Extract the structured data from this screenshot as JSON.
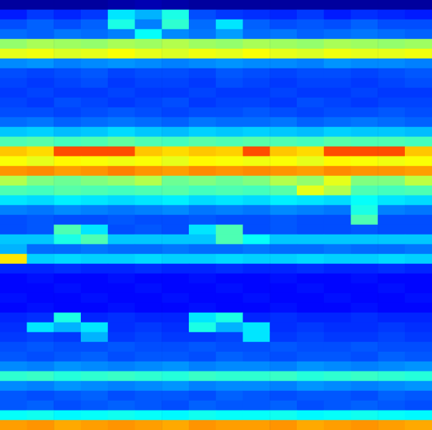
{
  "chart_data": {
    "type": "heatmap",
    "tick_labels": false,
    "zlim": [
      0,
      10
    ],
    "colormap": [
      "#00007f",
      "#0000ff",
      "#0080ff",
      "#00ffff",
      "#80ff80",
      "#ffff00",
      "#ff8000",
      "#ff0000",
      "#7f0000"
    ],
    "cells": [
      [
        0.3,
        0.3,
        0.3,
        0.3,
        0.4,
        0.5,
        0.4,
        0.3,
        0.3,
        0.3,
        0.3,
        0.3,
        0.3,
        0.3,
        0.3,
        0.3
      ],
      [
        1.5,
        1.8,
        1.6,
        1.8,
        3.5,
        3.0,
        4.0,
        2.0,
        1.8,
        1.7,
        1.6,
        1.8,
        1.5,
        1.7,
        1.6,
        1.5
      ],
      [
        2.0,
        2.2,
        2.0,
        2.2,
        4.0,
        2.5,
        4.2,
        2.3,
        3.5,
        2.2,
        2.0,
        2.1,
        2.0,
        2.2,
        2.0,
        2.0
      ],
      [
        2.3,
        2.2,
        2.4,
        2.3,
        2.5,
        3.8,
        2.6,
        2.4,
        2.8,
        2.3,
        2.4,
        2.2,
        2.3,
        2.4,
        2.3,
        2.2
      ],
      [
        5.2,
        5.4,
        5.3,
        5.2,
        5.4,
        5.3,
        5.5,
        5.3,
        5.2,
        5.4,
        5.3,
        5.2,
        5.4,
        5.3,
        5.2,
        5.3
      ],
      [
        6.0,
        6.1,
        5.9,
        6.0,
        6.2,
        6.0,
        5.9,
        6.1,
        6.0,
        6.2,
        6.0,
        5.9,
        6.1,
        6.0,
        6.0,
        6.1
      ],
      [
        2.6,
        2.7,
        2.5,
        2.6,
        2.7,
        2.6,
        2.5,
        2.6,
        2.7,
        2.6,
        2.6,
        2.5,
        2.7,
        2.6,
        2.6,
        2.5
      ],
      [
        2.0,
        1.9,
        2.0,
        2.1,
        1.9,
        2.0,
        2.0,
        1.9,
        2.1,
        2.0,
        1.9,
        2.0,
        2.0,
        1.9,
        2.0,
        2.1
      ],
      [
        1.9,
        1.8,
        1.9,
        2.0,
        1.8,
        1.9,
        1.9,
        1.8,
        2.0,
        1.9,
        1.8,
        1.9,
        1.9,
        1.8,
        1.9,
        2.0
      ],
      [
        1.8,
        1.9,
        1.8,
        1.8,
        1.9,
        1.8,
        1.8,
        1.9,
        1.8,
        1.8,
        1.9,
        1.8,
        1.8,
        1.9,
        1.8,
        1.8
      ],
      [
        1.9,
        1.8,
        2.0,
        1.9,
        1.8,
        1.9,
        2.0,
        1.8,
        1.9,
        1.9,
        1.8,
        2.0,
        1.9,
        1.8,
        1.9,
        1.9
      ],
      [
        2.0,
        2.0,
        1.9,
        2.0,
        2.1,
        2.0,
        1.9,
        2.0,
        2.0,
        2.1,
        2.0,
        1.9,
        2.0,
        2.0,
        2.1,
        2.0
      ],
      [
        2.3,
        2.4,
        2.2,
        2.3,
        2.4,
        2.3,
        2.2,
        2.4,
        2.3,
        2.3,
        2.4,
        2.2,
        2.3,
        2.4,
        2.3,
        2.2
      ],
      [
        3.2,
        3.3,
        3.1,
        3.2,
        3.4,
        3.2,
        3.1,
        3.3,
        3.2,
        3.3,
        3.2,
        3.1,
        3.3,
        3.2,
        3.2,
        3.1
      ],
      [
        4.5,
        4.6,
        4.4,
        4.5,
        4.7,
        4.5,
        4.4,
        4.6,
        4.5,
        4.6,
        4.5,
        4.4,
        4.6,
        4.5,
        4.5,
        4.4
      ],
      [
        6.8,
        6.6,
        8.0,
        8.0,
        8.0,
        6.8,
        6.6,
        6.8,
        6.7,
        8.0,
        6.8,
        6.6,
        8.0,
        8.0,
        8.0,
        6.8
      ],
      [
        6.2,
        6.0,
        6.3,
        6.2,
        6.1,
        6.2,
        6.0,
        6.3,
        6.2,
        6.1,
        6.2,
        6.0,
        6.3,
        6.2,
        6.1,
        6.2
      ],
      [
        7.3,
        7.4,
        7.2,
        7.3,
        7.5,
        7.3,
        7.2,
        7.4,
        7.3,
        7.4,
        7.3,
        7.2,
        7.4,
        7.3,
        7.3,
        7.2
      ],
      [
        5.5,
        5.0,
        4.8,
        5.0,
        5.2,
        5.5,
        4.8,
        5.0,
        4.8,
        5.0,
        5.5,
        5.2,
        6.0,
        5.0,
        5.0,
        5.6
      ],
      [
        4.5,
        4.4,
        4.6,
        4.5,
        4.4,
        4.5,
        4.6,
        4.4,
        4.5,
        4.4,
        4.6,
        6.0,
        5.5,
        4.5,
        4.4,
        4.5
      ],
      [
        3.5,
        3.4,
        3.6,
        3.5,
        3.4,
        3.5,
        3.6,
        3.4,
        3.5,
        3.4,
        3.6,
        3.5,
        3.4,
        3.8,
        3.5,
        3.4
      ],
      [
        2.5,
        2.4,
        2.6,
        2.5,
        2.4,
        2.5,
        2.6,
        2.4,
        2.5,
        2.4,
        2.6,
        2.5,
        2.4,
        4.0,
        2.5,
        2.4
      ],
      [
        2.0,
        2.1,
        2.0,
        2.0,
        2.1,
        2.0,
        2.0,
        2.1,
        2.0,
        2.0,
        2.1,
        2.0,
        2.0,
        4.5,
        2.0,
        2.0
      ],
      [
        2.0,
        2.1,
        4.5,
        3.5,
        2.0,
        2.1,
        2.0,
        3.5,
        4.5,
        2.0,
        2.1,
        2.0,
        2.0,
        2.1,
        2.0,
        2.0
      ],
      [
        3.2,
        3.2,
        4.0,
        4.5,
        3.2,
        3.2,
        3.2,
        3.2,
        4.5,
        3.8,
        3.2,
        3.2,
        3.2,
        3.2,
        3.2,
        3.2
      ],
      [
        3.0,
        2.3,
        2.3,
        2.4,
        2.3,
        2.3,
        2.4,
        2.3,
        2.3,
        2.4,
        2.3,
        2.3,
        2.4,
        2.3,
        2.3,
        2.4
      ],
      [
        6.5,
        3.3,
        3.4,
        3.3,
        3.3,
        3.4,
        3.3,
        3.3,
        3.4,
        3.3,
        3.3,
        3.4,
        3.3,
        3.3,
        3.4,
        3.3
      ],
      [
        1.6,
        1.6,
        1.7,
        1.6,
        1.6,
        1.7,
        1.6,
        1.6,
        1.7,
        1.6,
        1.6,
        1.7,
        1.6,
        1.6,
        1.7,
        1.6
      ],
      [
        1.3,
        1.4,
        1.3,
        1.3,
        1.4,
        1.3,
        1.3,
        1.4,
        1.3,
        1.3,
        1.4,
        1.3,
        1.3,
        1.4,
        1.3,
        1.3
      ],
      [
        1.3,
        1.3,
        1.4,
        1.3,
        1.3,
        1.4,
        1.3,
        1.3,
        1.4,
        1.3,
        1.3,
        1.4,
        1.3,
        1.3,
        1.4,
        1.3
      ],
      [
        1.4,
        1.3,
        1.3,
        1.4,
        1.3,
        1.3,
        1.4,
        1.3,
        1.3,
        1.4,
        1.3,
        1.3,
        1.4,
        1.3,
        1.3,
        1.4
      ],
      [
        1.3,
        1.4,
        1.3,
        1.3,
        1.4,
        1.3,
        1.3,
        1.4,
        1.3,
        1.3,
        1.4,
        1.3,
        1.3,
        1.4,
        1.3,
        1.3
      ],
      [
        1.6,
        1.7,
        4.0,
        1.6,
        1.7,
        1.6,
        1.6,
        3.5,
        4.0,
        1.6,
        1.7,
        1.6,
        1.6,
        1.7,
        1.6,
        1.6
      ],
      [
        1.7,
        3.5,
        3.0,
        3.5,
        1.7,
        1.8,
        1.7,
        4.0,
        3.0,
        3.5,
        1.7,
        1.8,
        1.7,
        1.7,
        1.8,
        1.7
      ],
      [
        1.8,
        1.9,
        1.8,
        3.0,
        1.8,
        1.9,
        1.8,
        1.8,
        1.9,
        3.5,
        1.8,
        1.9,
        1.8,
        1.8,
        1.9,
        1.8
      ],
      [
        2.0,
        2.1,
        2.0,
        2.0,
        2.1,
        2.0,
        2.0,
        2.1,
        2.0,
        2.0,
        2.1,
        2.0,
        2.0,
        2.1,
        2.0,
        2.0
      ],
      [
        2.1,
        2.0,
        2.1,
        2.2,
        2.0,
        2.1,
        2.1,
        2.0,
        2.2,
        2.1,
        2.0,
        2.1,
        2.1,
        2.0,
        2.2,
        2.1
      ],
      [
        2.6,
        2.5,
        2.7,
        2.6,
        2.5,
        2.6,
        2.7,
        2.5,
        2.6,
        2.6,
        2.5,
        2.7,
        2.6,
        2.5,
        2.6,
        2.7
      ],
      [
        4.2,
        4.3,
        4.1,
        4.2,
        4.3,
        4.2,
        4.1,
        4.3,
        4.2,
        4.2,
        4.3,
        4.1,
        4.2,
        4.3,
        4.2,
        4.1
      ],
      [
        2.6,
        2.5,
        2.7,
        2.6,
        2.5,
        2.6,
        2.7,
        2.5,
        2.6,
        2.6,
        2.5,
        2.7,
        2.6,
        2.5,
        2.6,
        2.7
      ],
      [
        2.1,
        2.0,
        2.1,
        2.2,
        2.0,
        2.1,
        2.1,
        2.0,
        2.2,
        2.1,
        2.0,
        2.1,
        2.1,
        2.0,
        2.2,
        2.1
      ],
      [
        2.1,
        2.2,
        2.0,
        2.1,
        2.2,
        2.1,
        2.0,
        2.2,
        2.1,
        2.1,
        2.2,
        2.0,
        2.1,
        2.2,
        2.1,
        2.0
      ],
      [
        3.8,
        3.9,
        3.7,
        3.8,
        3.9,
        3.8,
        3.7,
        3.9,
        3.8,
        3.8,
        3.9,
        3.7,
        3.8,
        3.9,
        3.8,
        3.7
      ],
      [
        7.2,
        7.3,
        7.1,
        7.2,
        7.3,
        7.2,
        7.1,
        7.3,
        7.2,
        7.2,
        7.3,
        7.1,
        7.2,
        7.3,
        7.2,
        7.1
      ]
    ]
  }
}
